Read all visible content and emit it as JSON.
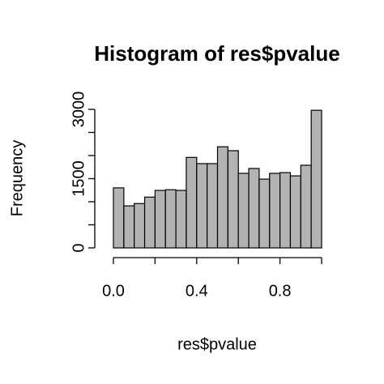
{
  "chart_data": {
    "type": "histogram",
    "title": "Histogram of res$pvalue",
    "x_label": "res$pvalue",
    "y_label": "Frequency",
    "bins": [
      0,
      0.05,
      0.1,
      0.15,
      0.2,
      0.25,
      0.3,
      0.35,
      0.4,
      0.45,
      0.5,
      0.55,
      0.6,
      0.65,
      0.7,
      0.75,
      0.8,
      0.85,
      0.9,
      0.95,
      1
    ],
    "values": [
      1300,
      910,
      960,
      1100,
      1245,
      1260,
      1245,
      1960,
      1825,
      1825,
      2190,
      2105,
      1615,
      1720,
      1490,
      1615,
      1630,
      1560,
      1790,
      2980
    ],
    "color": "#b3b3b3",
    "xlim": [
      0,
      1
    ],
    "xticks": [
      {
        "value": 0,
        "label": "0.0"
      },
      {
        "value": 0.2,
        "label": null
      },
      0.4,
      {
        "value": 0.6,
        "label": null
      },
      0.8,
      {
        "value": 1,
        "label": null
      }
    ],
    "ylim": [
      0,
      3000
    ],
    "yticks": [
      0,
      {
        "value": 500,
        "label": null
      },
      {
        "value": 1000,
        "label": null
      },
      1500,
      {
        "value": 2000,
        "label": null
      },
      {
        "value": 2500,
        "label": null
      },
      3000
    ]
  }
}
